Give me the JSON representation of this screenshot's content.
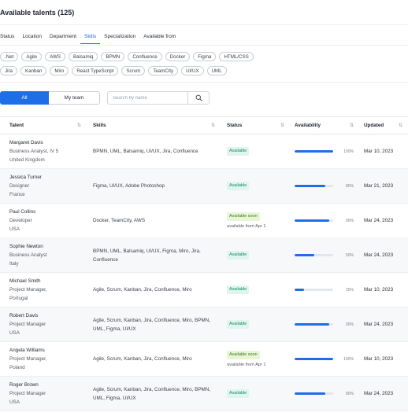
{
  "header": {
    "title": "Available talents (125)"
  },
  "tabs": [
    {
      "label": "Status",
      "active": false
    },
    {
      "label": "Location",
      "active": false
    },
    {
      "label": "Department",
      "active": false
    },
    {
      "label": "Skills",
      "active": true
    },
    {
      "label": "Specialization",
      "active": false
    },
    {
      "label": "Available from",
      "active": false
    }
  ],
  "chips": {
    "row1": [
      ".Net",
      "Agile",
      "AWS",
      "Balsamiq",
      "BPMN",
      "Confluence",
      "Docker",
      "Figma",
      "HTML/CSS"
    ],
    "row2": [
      "Jira",
      "Kanban",
      "Miro",
      "React TypeScript",
      "Scrum",
      "TeamCity",
      "UI/UX",
      "UML"
    ]
  },
  "toolbar": {
    "all_label": "All",
    "team_label": "My team",
    "search_placeholder": "Search by name"
  },
  "table": {
    "columns": [
      "Talent",
      "Skills",
      "Status",
      "Availability",
      "Updated"
    ],
    "rows": [
      {
        "name": "Margaret Davis",
        "role": "Business Analyst, IV 5",
        "location": "United Kingdom",
        "skills": "BPMN, UML, Balsamiq, UI/UX, Jira, Confluence",
        "status": "Available",
        "status_type": "ok",
        "note": "",
        "availability": 100,
        "availability_label": "100%",
        "updated": "Mar 10, 2023"
      },
      {
        "name": "Jessica Turner",
        "role": "Designer",
        "location": "France",
        "skills": "Figma, UI/UX, Adobe Photoshop",
        "status": "Available",
        "status_type": "ok",
        "note": "",
        "availability": 80,
        "availability_label": "80%",
        "updated": "Mar 21, 2023"
      },
      {
        "name": "Paul Collins",
        "role": "Developer",
        "location": "USA",
        "skills": "Docker, TeamCity, AWS",
        "status": "Available soon",
        "status_type": "soon",
        "note": "available from Apr 1",
        "availability": 90,
        "availability_label": "90%",
        "updated": "Mar 24, 2023"
      },
      {
        "name": "Sophie Newton",
        "role": "Business Analyst",
        "location": "Italy",
        "skills": "BPMN, UML, Balsamiq, UI/UX, Figma, Miro, Jira, Confluence",
        "status": "Available",
        "status_type": "ok",
        "note": "",
        "availability": 50,
        "availability_label": "50%",
        "updated": "Mar 24, 2023"
      },
      {
        "name": "Michael Smith",
        "role": "Project Manager,",
        "location": "Portugal",
        "skills": "Agile, Scrum, Kanban, Jira, Confluence, Miro",
        "status": "Available",
        "status_type": "ok",
        "note": "",
        "availability": 25,
        "availability_label": "25%",
        "updated": "Mar 10, 2023"
      },
      {
        "name": "Robert Davis",
        "role": "Project Manager",
        "location": "USA",
        "skills": "Agile, Scrum, Kanban, Jira, Confluence, Miro, BPMN, UML, Figma, UI/UX",
        "status": "Available",
        "status_type": "ok",
        "note": "",
        "availability": 90,
        "availability_label": "90%",
        "updated": "Mar 24, 2023"
      },
      {
        "name": "Angela Williams",
        "role": "Project Manager,",
        "location": "Poland",
        "skills": "Agile, Scrum, Kanban, Jira, Confluence, Miro",
        "status": "Available soon",
        "status_type": "soon",
        "note": "available from Apr 1",
        "availability": 100,
        "availability_label": "100%",
        "updated": "Mar 10, 2023"
      },
      {
        "name": "Roger Brown",
        "role": "Project Manager",
        "location": "USA",
        "skills": "Agile, Scrum, Kanban, Jira, Confluence, Miro, BPMN, UML, Figma, UI/UX",
        "status": "Available",
        "status_type": "ok",
        "note": "",
        "availability": 80,
        "availability_label": "80%",
        "updated": "Mar 24, 2023"
      }
    ]
  },
  "colors": {
    "accent": "#1e6ee8",
    "available_bg": "#dff5ee",
    "soon_bg": "#e8f6d8"
  }
}
